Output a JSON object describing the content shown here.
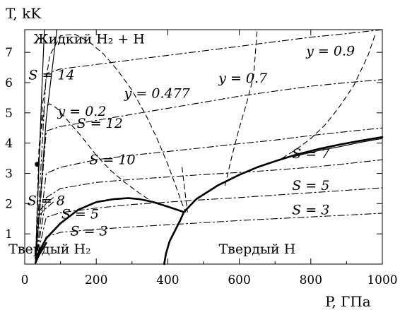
{
  "chart_data": {
    "type": "line",
    "title": "",
    "xlabel": "P, ГПа",
    "ylabel": "T, kK",
    "xlim": [
      0,
      1000
    ],
    "ylim": [
      0,
      7.75
    ],
    "x_ticks": [
      "0",
      "200",
      "400",
      "600",
      "800",
      "1000"
    ],
    "y_ticks": [
      "1",
      "2",
      "3",
      "4",
      "5",
      "6",
      "7"
    ],
    "grid": false,
    "regions": [
      {
        "label": "Жидкий H₂ + H",
        "x": 180,
        "y": 7.3
      },
      {
        "label": "Твердый H₂",
        "x": 70,
        "y": 0.35
      },
      {
        "label": "Твердый H",
        "x": 650,
        "y": 0.35
      }
    ],
    "annotations": [
      {
        "text": "S = 14",
        "x": 75,
        "y": 6.1
      },
      {
        "text": "S = 12",
        "x": 210,
        "y": 4.5
      },
      {
        "text": "S = 10",
        "x": 245,
        "y": 3.3
      },
      {
        "text": "S = 8",
        "x": 60,
        "y": 1.95
      },
      {
        "text": "S = 5",
        "x": 155,
        "y": 1.5
      },
      {
        "text": "S = 3",
        "x": 180,
        "y": 0.95
      },
      {
        "text": "S = 7",
        "x": 800,
        "y": 3.5
      },
      {
        "text": "S = 5",
        "x": 800,
        "y": 2.45
      },
      {
        "text": "S = 3",
        "x": 800,
        "y": 1.65
      },
      {
        "text": "y = 0.2",
        "x": 160,
        "y": 4.9
      },
      {
        "text": "y = 0.477",
        "x": 370,
        "y": 5.5
      },
      {
        "text": "y = 0.7",
        "x": 610,
        "y": 6.0
      },
      {
        "text": "y = 0.9",
        "x": 855,
        "y": 6.9
      }
    ],
    "series": [
      {
        "style": "solid-thick",
        "x": [
          30,
          60,
          100,
          150,
          200,
          250,
          290,
          320,
          360,
          400,
          445
        ],
        "y": [
          0.2,
          0.85,
          1.35,
          1.8,
          2.05,
          2.15,
          2.18,
          2.15,
          2.05,
          1.9,
          1.72
        ]
      },
      {
        "style": "solid-thick",
        "x": [
          445,
          480,
          540,
          600,
          650,
          700,
          760,
          820,
          880,
          940,
          1000
        ],
        "y": [
          1.72,
          2.15,
          2.6,
          2.95,
          3.2,
          3.4,
          3.62,
          3.8,
          3.95,
          4.08,
          4.2
        ]
      },
      {
        "style": "solid-thick",
        "x": [
          390,
          395,
          405,
          420,
          435,
          445
        ],
        "y": [
          0.0,
          0.35,
          0.75,
          1.1,
          1.45,
          1.72
        ]
      },
      {
        "style": "solid-thick",
        "x": [
          30,
          40,
          50,
          60
        ],
        "y": [
          0.05,
          0.3,
          0.5,
          0.7
        ]
      },
      {
        "style": "solid",
        "x": [
          30,
          40,
          48,
          55
        ],
        "y": [
          0.0,
          3.3,
          5.8,
          7.75
        ]
      },
      {
        "style": "solid",
        "x": [
          30,
          60,
          90
        ],
        "y": [
          0.0,
          4.8,
          7.75
        ]
      },
      {
        "style": "solid",
        "x": [
          750,
          820,
          880,
          940,
          1000
        ],
        "y": [
          3.55,
          3.75,
          3.88,
          4.03,
          4.15
        ]
      },
      {
        "style": "dashed",
        "x": [
          30,
          38,
          50,
          70,
          100,
          140,
          180,
          220,
          260,
          300,
          340,
          370,
          400,
          425,
          440,
          450
        ],
        "y": [
          0.0,
          3.0,
          5.3,
          6.9,
          7.55,
          7.6,
          7.35,
          6.95,
          6.4,
          5.75,
          4.9,
          4.15,
          3.3,
          2.5,
          2.0,
          1.72
        ]
      },
      {
        "style": "dashed",
        "x": [
          30,
          40,
          55,
          70,
          90,
          120,
          160,
          200,
          240,
          280,
          320,
          345
        ],
        "y": [
          0.0,
          3.9,
          5.2,
          5.3,
          5.15,
          4.75,
          4.2,
          3.6,
          3.1,
          2.7,
          2.35,
          2.15
        ]
      },
      {
        "style": "dashed",
        "x": [
          440,
          447,
          452,
          455
        ],
        "y": [
          3.2,
          2.5,
          2.0,
          1.72
        ]
      },
      {
        "style": "dashed",
        "x": [
          560,
          580,
          600,
          620,
          640,
          650
        ],
        "y": [
          2.6,
          3.6,
          4.5,
          5.3,
          6.2,
          7.75
        ]
      },
      {
        "style": "dashed",
        "x": [
          720,
          760,
          800,
          840,
          880,
          920,
          960,
          980
        ],
        "y": [
          3.5,
          3.8,
          4.15,
          4.6,
          5.2,
          5.9,
          6.9,
          7.6
        ]
      },
      {
        "style": "dashdot",
        "x": [
          30,
          60,
          100,
          200,
          300,
          400,
          500,
          600,
          700,
          800,
          900,
          1000
        ],
        "y": [
          0.0,
          6.3,
          6.45,
          6.6,
          6.75,
          6.9,
          7.05,
          7.2,
          7.35,
          7.5,
          7.62,
          7.75
        ]
      },
      {
        "style": "dashdot",
        "x": [
          30,
          60,
          100,
          200,
          300,
          400,
          500,
          600,
          700,
          800,
          900,
          1000
        ],
        "y": [
          0.0,
          4.4,
          4.55,
          4.75,
          4.95,
          5.15,
          5.35,
          5.55,
          5.72,
          5.88,
          6.0,
          6.1
        ]
      },
      {
        "style": "dashdot",
        "x": [
          30,
          60,
          100,
          200,
          300,
          400,
          500,
          600,
          700,
          800,
          900,
          1000
        ],
        "y": [
          0.0,
          3.0,
          3.2,
          3.45,
          3.6,
          3.72,
          3.85,
          3.98,
          4.1,
          4.25,
          4.38,
          4.5
        ]
      },
      {
        "style": "dashdot",
        "x": [
          30,
          60,
          100,
          200,
          300,
          400,
          500,
          600,
          700,
          800,
          900,
          1000
        ],
        "y": [
          0.0,
          2.2,
          2.5,
          2.7,
          2.8,
          2.88,
          2.96,
          3.03,
          3.11,
          3.2,
          3.32,
          3.45
        ]
      },
      {
        "style": "dashdot",
        "x": [
          30,
          60,
          100,
          200,
          300,
          400,
          500,
          600,
          700,
          800,
          900,
          1000
        ],
        "y": [
          0.0,
          1.55,
          1.7,
          1.85,
          1.97,
          2.05,
          2.13,
          2.2,
          2.28,
          2.36,
          2.44,
          2.52
        ]
      },
      {
        "style": "dashdot",
        "x": [
          30,
          60,
          100,
          200,
          300,
          400,
          500,
          600,
          700,
          800,
          900,
          1000
        ],
        "y": [
          0.0,
          0.9,
          1.05,
          1.15,
          1.23,
          1.3,
          1.37,
          1.44,
          1.5,
          1.56,
          1.62,
          1.68
        ]
      },
      {
        "style": "dashdot",
        "x": [
          40,
          55,
          70,
          85
        ],
        "y": [
          1.6,
          1.8,
          1.95,
          2.1
        ]
      },
      {
        "style": "dashdot",
        "x": [
          40,
          55,
          70,
          85
        ],
        "y": [
          1.75,
          1.95,
          2.1,
          2.25
        ]
      }
    ],
    "points": [
      {
        "x": 35,
        "y": 3.3
      }
    ]
  }
}
